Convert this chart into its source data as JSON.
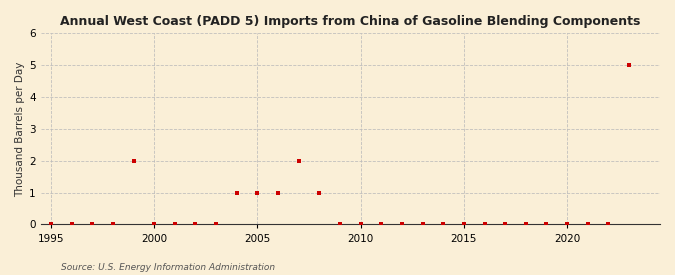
{
  "title": "Annual West Coast (PADD 5) Imports from China of Gasoline Blending Components",
  "ylabel": "Thousand Barrels per Day",
  "source": "Source: U.S. Energy Information Administration",
  "background_color": "#faefd7",
  "data_color": "#cc0000",
  "grid_color": "#bbbbbb",
  "xlim": [
    1994.5,
    2024.5
  ],
  "ylim": [
    0,
    6
  ],
  "yticks": [
    0,
    1,
    2,
    3,
    4,
    5,
    6
  ],
  "xticks": [
    1995,
    2000,
    2005,
    2010,
    2015,
    2020
  ],
  "years": [
    1995,
    1996,
    1997,
    1998,
    1999,
    2000,
    2001,
    2002,
    2003,
    2004,
    2005,
    2006,
    2007,
    2008,
    2009,
    2010,
    2011,
    2012,
    2013,
    2014,
    2015,
    2016,
    2017,
    2018,
    2019,
    2020,
    2021,
    2022,
    2023
  ],
  "values": [
    0,
    0,
    0,
    0,
    2,
    0,
    0,
    0,
    0,
    1,
    1,
    1,
    2,
    1,
    0,
    0,
    0,
    0,
    0,
    0,
    0,
    0,
    0,
    0,
    0,
    0,
    0,
    0,
    5
  ]
}
